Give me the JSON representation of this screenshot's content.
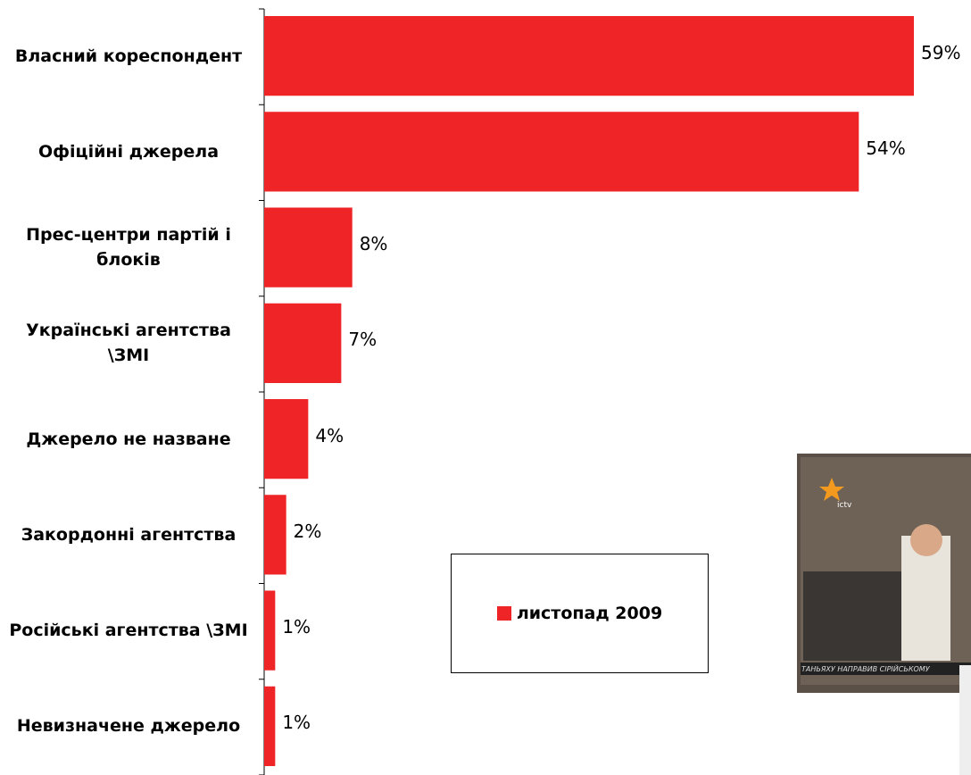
{
  "chart_data": {
    "type": "bar",
    "orientation": "horizontal",
    "categories": [
      "Власний кореспондент",
      "Офіційні джерела",
      "Прес-центри партій і блоків",
      "Українські агентства \\ЗМІ",
      "Джерело не назване",
      "Закордонні агентства",
      "Російські агентства \\ЗМІ",
      "Невизначене джерело"
    ],
    "series": [
      {
        "name": "листопад 2009",
        "color": "#ee2427",
        "values": [
          59,
          54,
          8,
          7,
          4,
          2,
          1,
          1
        ],
        "value_labels": [
          "59%",
          "54%",
          "8%",
          "7%",
          "4%",
          "2%",
          "1%",
          "1%"
        ]
      }
    ]
  },
  "photo": {
    "logo": "ictv",
    "ticker": "ТАНЬЯХУ НАПРАВИВ СІРІЙСЬКОМУ"
  }
}
